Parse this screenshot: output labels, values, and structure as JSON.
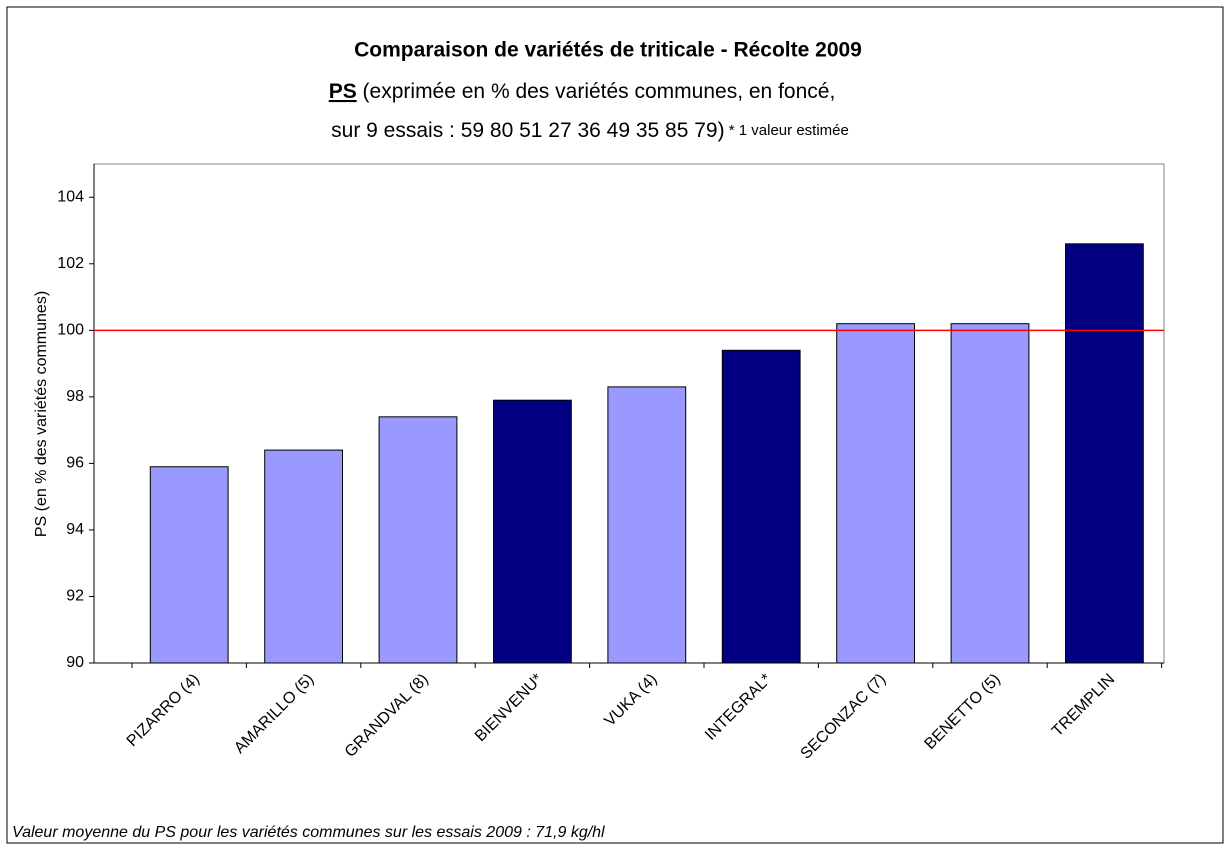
{
  "chart_data": {
    "type": "bar",
    "title": "Comparaison de variétés de triticale - Récolte 2009",
    "subtitle_lead": "PS",
    "subtitle_line1": " (exprimée en % des variétés communes, en foncé,",
    "subtitle_line2": "sur 9 essais : 59 80 51 27 36 49 35 85 79)",
    "subtitle_note": " * 1 valeur estimée",
    "y_label": "PS (en % des variétés communes)",
    "footnote": "Valeur moyenne du PS pour les variétés communes sur les essais 2009 : 71,9 kg/hl",
    "categories": [
      "PIZARRO (4)",
      "AMARILLO (5)",
      "GRANDVAL (8)",
      "BIENVENU*",
      "VUKA (4)",
      "INTEGRAL*",
      "SECONZAC (7)",
      "BENETTO (5)",
      "TREMPLIN"
    ],
    "values": [
      95.9,
      96.4,
      97.4,
      97.9,
      98.3,
      99.4,
      100.2,
      100.2,
      102.6
    ],
    "colors": [
      "#9999ff",
      "#9999ff",
      "#9999ff",
      "#000080",
      "#9999ff",
      "#000080",
      "#9999ff",
      "#9999ff",
      "#000080"
    ],
    "reference_line": 100,
    "reference_color": "#ff0000",
    "ylim": [
      90,
      105
    ],
    "yticks": [
      90,
      92,
      94,
      96,
      98,
      100,
      102,
      104
    ],
    "grid": false
  }
}
